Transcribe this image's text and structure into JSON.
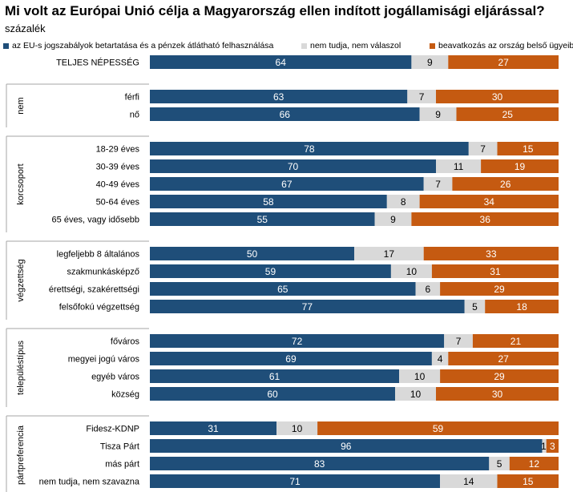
{
  "title": "Mi volt az Európai Unió célja a Magyarország ellen indított jogállamisági eljárással?",
  "subtitle": "százalék",
  "chart_data": {
    "type": "bar",
    "stacked": true,
    "orientation": "horizontal",
    "xlim": [
      0,
      100
    ],
    "legend_position": "top",
    "series": [
      {
        "name": "az EU-s jogszabályok betartatása és a pénzek átlátható felhasználása",
        "color": "#1f4e79"
      },
      {
        "name": "nem tudja,  nem válaszol",
        "color": "#d9d9d9"
      },
      {
        "name": "beavatkozás az ország belső ügyeibe",
        "color": "#c55a11"
      }
    ],
    "groups": [
      {
        "name": "",
        "rows": [
          {
            "label": "TELJES NÉPESSÉG",
            "values": [
              64,
              9,
              27
            ]
          }
        ]
      },
      {
        "name": "nem",
        "rows": [
          {
            "label": "férfi",
            "values": [
              63,
              7,
              30
            ]
          },
          {
            "label": "nő",
            "values": [
              66,
              9,
              25
            ]
          }
        ]
      },
      {
        "name": "korcsoport",
        "rows": [
          {
            "label": "18-29 éves",
            "values": [
              78,
              7,
              15
            ]
          },
          {
            "label": "30-39 éves",
            "values": [
              70,
              11,
              19
            ]
          },
          {
            "label": "40-49 éves",
            "values": [
              67,
              7,
              26
            ]
          },
          {
            "label": "50-64 éves",
            "values": [
              58,
              8,
              34
            ]
          },
          {
            "label": "65 éves, vagy idősebb",
            "values": [
              55,
              9,
              36
            ]
          }
        ]
      },
      {
        "name": "végzettség",
        "rows": [
          {
            "label": "legfeljebb 8 általános",
            "values": [
              50,
              17,
              33
            ]
          },
          {
            "label": "szakmunkásképző",
            "values": [
              59,
              10,
              31
            ]
          },
          {
            "label": "érettségi, szakérettségi",
            "values": [
              65,
              6,
              29
            ]
          },
          {
            "label": "felsőfokú végzettség",
            "values": [
              77,
              5,
              18
            ]
          }
        ]
      },
      {
        "name": "településtípus",
        "rows": [
          {
            "label": "főváros",
            "values": [
              72,
              7,
              21
            ]
          },
          {
            "label": "megyei jogú város",
            "values": [
              69,
              4,
              27
            ]
          },
          {
            "label": "egyéb város",
            "values": [
              61,
              10,
              29
            ]
          },
          {
            "label": "község",
            "values": [
              60,
              10,
              30
            ]
          }
        ]
      },
      {
        "name": "pártpreferencia",
        "rows": [
          {
            "label": "Fidesz-KDNP",
            "values": [
              31,
              10,
              59
            ]
          },
          {
            "label": "Tisza Párt",
            "values": [
              96,
              1,
              3
            ]
          },
          {
            "label": "más párt",
            "values": [
              83,
              5,
              12
            ]
          },
          {
            "label": "nem tudja, nem szavazna",
            "values": [
              71,
              14,
              15
            ]
          }
        ]
      }
    ]
  }
}
